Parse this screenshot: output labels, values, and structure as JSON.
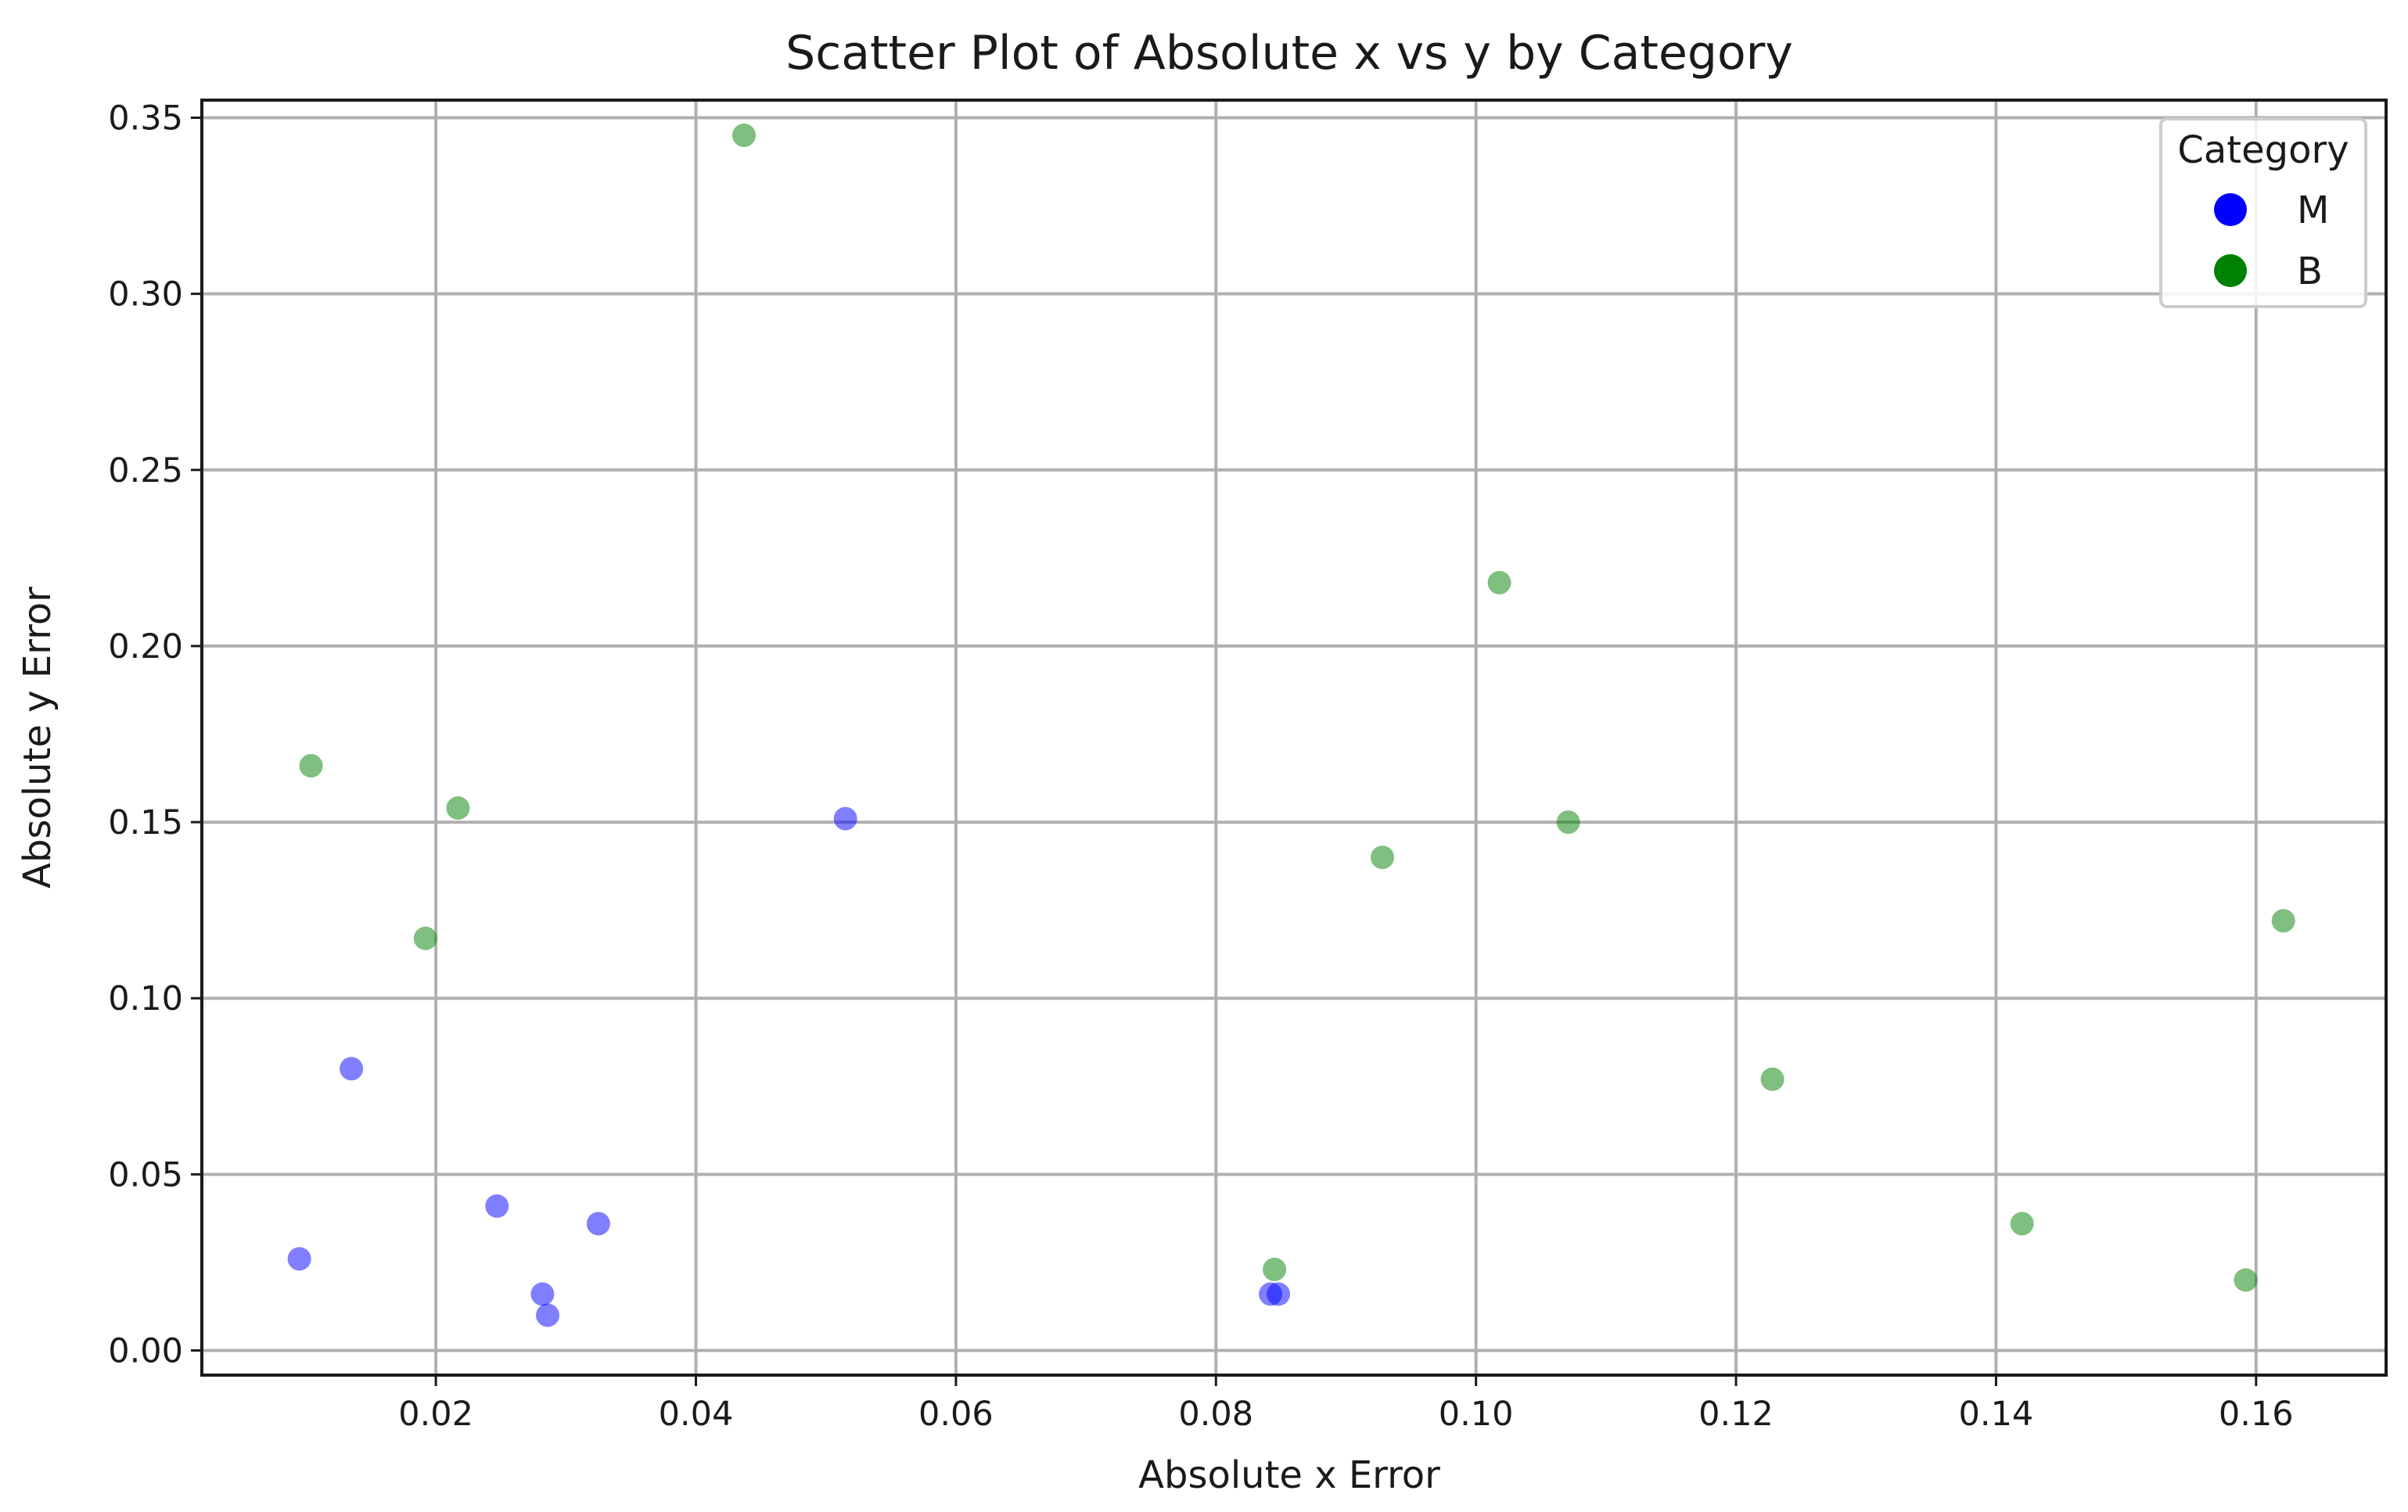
{
  "chart_data": {
    "type": "scatter",
    "title": "Scatter Plot of Absolute x vs y by Category",
    "xlabel": "Absolute x Error",
    "ylabel": "Absolute y Error",
    "xlim": [
      0.002,
      0.17
    ],
    "ylim": [
      -0.007,
      0.355
    ],
    "xticks": [
      0.02,
      0.04,
      0.06,
      0.08,
      0.1,
      0.12,
      0.14,
      0.16
    ],
    "xtick_labels": [
      "0.02",
      "0.04",
      "0.06",
      "0.08",
      "0.10",
      "0.12",
      "0.14",
      "0.16"
    ],
    "yticks": [
      0.0,
      0.05,
      0.1,
      0.15,
      0.2,
      0.25,
      0.3,
      0.35
    ],
    "ytick_labels": [
      "0.00",
      "0.05",
      "0.10",
      "0.15",
      "0.20",
      "0.25",
      "0.30",
      "0.35"
    ],
    "grid": true,
    "legend": {
      "title": "Category",
      "placement": "top-right"
    },
    "series": [
      {
        "name": "M",
        "color": "#0000ff",
        "points": [
          {
            "x": 0.0095,
            "y": 0.026
          },
          {
            "x": 0.0135,
            "y": 0.08
          },
          {
            "x": 0.0247,
            "y": 0.041
          },
          {
            "x": 0.0282,
            "y": 0.016
          },
          {
            "x": 0.0286,
            "y": 0.01
          },
          {
            "x": 0.0325,
            "y": 0.036
          },
          {
            "x": 0.0515,
            "y": 0.151
          },
          {
            "x": 0.0842,
            "y": 0.016
          },
          {
            "x": 0.0848,
            "y": 0.016
          }
        ]
      },
      {
        "name": "B",
        "color": "#008000",
        "points": [
          {
            "x": 0.0104,
            "y": 0.166
          },
          {
            "x": 0.0192,
            "y": 0.117
          },
          {
            "x": 0.0217,
            "y": 0.154
          },
          {
            "x": 0.0437,
            "y": 0.345
          },
          {
            "x": 0.0845,
            "y": 0.023
          },
          {
            "x": 0.0928,
            "y": 0.14
          },
          {
            "x": 0.1018,
            "y": 0.218
          },
          {
            "x": 0.1071,
            "y": 0.15
          },
          {
            "x": 0.1228,
            "y": 0.077
          },
          {
            "x": 0.142,
            "y": 0.036
          },
          {
            "x": 0.1592,
            "y": 0.02
          },
          {
            "x": 0.1621,
            "y": 0.122
          }
        ]
      }
    ]
  }
}
